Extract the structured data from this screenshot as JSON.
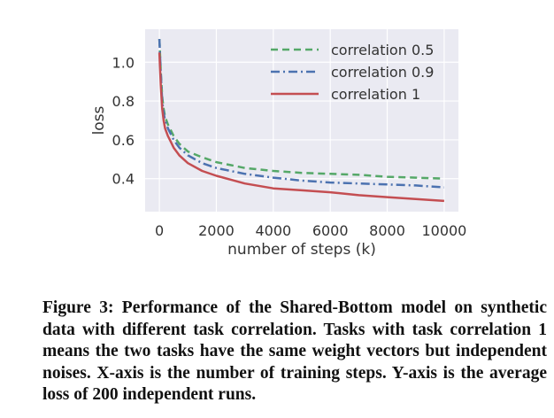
{
  "caption": "Figure 3: Performance of the Shared-Bottom model on synthetic data with different task correlation. Tasks with task correlation 1 means the two tasks have the same weight vectors but independent noises. X-axis is the number of training steps. Y-axis is the average loss of 200 independent runs.",
  "chart_data": {
    "type": "line",
    "xlabel": "number of steps (k)",
    "ylabel": "loss",
    "xlim": [
      -500,
      10500
    ],
    "ylim": [
      0.23,
      1.17
    ],
    "xticks": [
      0,
      2000,
      4000,
      6000,
      8000,
      10000
    ],
    "yticks": [
      0.4,
      0.6,
      0.8,
      1.0
    ],
    "xtick_labels": [
      "0",
      "2000",
      "4000",
      "6000",
      "8000",
      "10000"
    ],
    "ytick_labels": [
      "0.4",
      "0.6",
      "0.8",
      "1.0"
    ],
    "grid": true,
    "legend_position": "top-right",
    "series": [
      {
        "name": "correlation 0.5",
        "color": "#55a868",
        "dash": "dashed",
        "x": [
          0,
          50,
          100,
          150,
          200,
          300,
          400,
          500,
          700,
          1000,
          1500,
          2000,
          2500,
          3000,
          4000,
          5000,
          6000,
          7000,
          8000,
          9000,
          10000
        ],
        "y": [
          1.12,
          0.95,
          0.82,
          0.76,
          0.72,
          0.68,
          0.65,
          0.62,
          0.58,
          0.54,
          0.51,
          0.485,
          0.47,
          0.455,
          0.44,
          0.43,
          0.425,
          0.42,
          0.41,
          0.405,
          0.4
        ]
      },
      {
        "name": "correlation 0.9",
        "color": "#4c72b0",
        "dash": "dashdot",
        "x": [
          0,
          50,
          100,
          150,
          200,
          300,
          400,
          500,
          700,
          1000,
          1500,
          2000,
          2500,
          3000,
          4000,
          5000,
          6000,
          7000,
          8000,
          9000,
          10000
        ],
        "y": [
          1.12,
          0.94,
          0.8,
          0.74,
          0.7,
          0.66,
          0.63,
          0.6,
          0.56,
          0.52,
          0.48,
          0.455,
          0.44,
          0.425,
          0.405,
          0.39,
          0.38,
          0.375,
          0.37,
          0.365,
          0.355
        ]
      },
      {
        "name": "correlation 1",
        "color": "#c44e52",
        "dash": "solid",
        "x": [
          0,
          50,
          100,
          150,
          200,
          300,
          400,
          500,
          700,
          1000,
          1500,
          2000,
          2500,
          3000,
          4000,
          5000,
          6000,
          7000,
          8000,
          9000,
          10000
        ],
        "y": [
          1.05,
          0.88,
          0.76,
          0.7,
          0.66,
          0.62,
          0.59,
          0.56,
          0.52,
          0.48,
          0.44,
          0.415,
          0.395,
          0.375,
          0.35,
          0.34,
          0.33,
          0.315,
          0.305,
          0.295,
          0.285
        ]
      }
    ]
  }
}
